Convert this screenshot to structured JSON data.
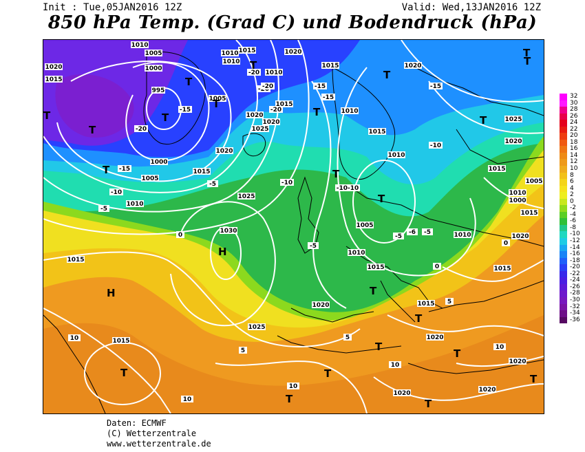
{
  "header": {
    "init": "Init : Tue,05JAN2016 12Z",
    "valid": "Valid: Wed,13JAN2016 12Z",
    "title": "850 hPa Temp. (Grad C) und Bodendruck (hPa)"
  },
  "credits": {
    "line1": "Daten: ECMWF",
    "line2": "(C) Wetterzentrale",
    "line3": "www.wetterzentrale.de"
  },
  "colors": {
    "ocean_deep_violet": "#7d1ee6",
    "deep_blue": "#2841ff",
    "blue": "#1e90ff",
    "cyan": "#21c8e8",
    "aqua": "#20ddb0",
    "green": "#2db84a",
    "lime": "#8cd91e",
    "yellow": "#f0e020",
    "gold": "#f2c318",
    "orange": "#ef9a20",
    "dark_orange": "#e07818",
    "isobar": "#ffffff",
    "coast": "#000000"
  },
  "legend": {
    "items": [
      {
        "value": "32",
        "color": "#ff00ff"
      },
      {
        "value": "30",
        "color": "#ff1aff"
      },
      {
        "value": "28",
        "color": "#f0008a"
      },
      {
        "value": "26",
        "color": "#e8004a"
      },
      {
        "value": "24",
        "color": "#e4001a"
      },
      {
        "value": "22",
        "color": "#e81c10"
      },
      {
        "value": "20",
        "color": "#ee3c10"
      },
      {
        "value": "18",
        "color": "#f05a12"
      },
      {
        "value": "16",
        "color": "#ef7614"
      },
      {
        "value": "14",
        "color": "#ee8a16"
      },
      {
        "value": "12",
        "color": "#ee9a1a"
      },
      {
        "value": "10",
        "color": "#efac1c"
      },
      {
        "value": "8",
        "color": "#f2c018"
      },
      {
        "value": "6",
        "color": "#f4d41a"
      },
      {
        "value": "4",
        "color": "#f6e21c"
      },
      {
        "value": "2",
        "color": "#eeee1e"
      },
      {
        "value": "0",
        "color": "#c8e81e"
      },
      {
        "value": "-2",
        "color": "#92dc1c"
      },
      {
        "value": "-4",
        "color": "#5ace24"
      },
      {
        "value": "-6",
        "color": "#30c038"
      },
      {
        "value": "-8",
        "color": "#22c88a"
      },
      {
        "value": "-10",
        "color": "#20d8c0"
      },
      {
        "value": "-12",
        "color": "#1ecce4"
      },
      {
        "value": "-14",
        "color": "#1aa8f2"
      },
      {
        "value": "-16",
        "color": "#1a84f6"
      },
      {
        "value": "-18",
        "color": "#2060fa"
      },
      {
        "value": "-20",
        "color": "#2a40f6"
      },
      {
        "value": "-22",
        "color": "#3828ea"
      },
      {
        "value": "-24",
        "color": "#4a1ee2"
      },
      {
        "value": "-26",
        "color": "#5c1ad8"
      },
      {
        "value": "-28",
        "color": "#6e18cc"
      },
      {
        "value": "-30",
        "color": "#7818be"
      },
      {
        "value": "-32",
        "color": "#7a14a6"
      },
      {
        "value": "-34",
        "color": "#6e1088"
      },
      {
        "value": "-36",
        "color": "#560a62"
      }
    ]
  },
  "map_labels": {
    "pressure": [
      "1010",
      "1005",
      "1000",
      "995",
      "1015",
      "1020",
      "1010",
      "1015",
      "1010",
      "1020",
      "1015",
      "1010",
      "1020",
      "1005",
      "1020",
      "1025",
      "1020",
      "1015",
      "1010",
      "1005",
      "1010",
      "1015",
      "1020",
      "1025",
      "1030",
      "1025",
      "1010",
      "1015",
      "1010",
      "1005",
      "1010",
      "1015",
      "1020",
      "1015",
      "1010",
      "1015",
      "1020",
      "1025",
      "1020",
      "1015",
      "1020",
      "1010",
      "1015",
      "1020",
      "1020",
      "1020",
      "1015",
      "1000",
      "1005",
      "1010"
    ],
    "temperature": [
      "-20",
      "-15",
      "-15",
      "-10",
      "-5",
      "-20",
      "-15",
      "-15",
      "-20",
      "-20",
      "-20",
      "-15",
      "-10",
      "-10",
      "-10-10",
      "-5",
      "-5",
      "-5",
      "-6",
      "-5",
      "0",
      "0",
      "5",
      "5",
      "5",
      "10",
      "10",
      "10",
      "10",
      "10",
      "0"
    ],
    "systems": [
      "T",
      "T",
      "T",
      "T",
      "T",
      "T",
      "T",
      "T",
      "T",
      "T",
      "T",
      "T",
      "T",
      "T",
      "T",
      "T",
      "T",
      "T",
      "T",
      "T",
      "H",
      "H",
      "T",
      "T",
      "T"
    ]
  }
}
